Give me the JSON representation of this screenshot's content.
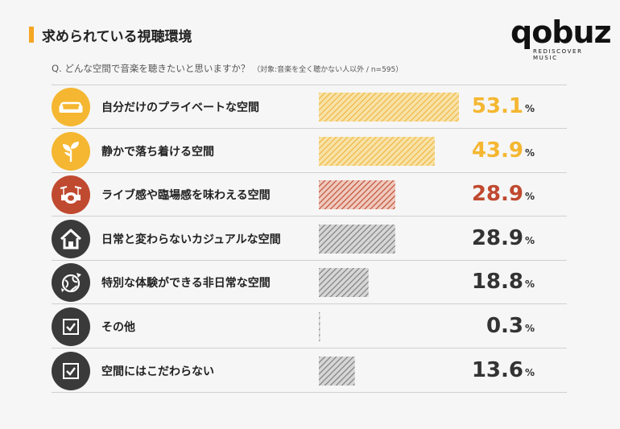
{
  "title": "求められている視聴環境",
  "logo": {
    "word": "qobuz",
    "tagline": "REDISCOVER MUSIC"
  },
  "question": "Q. どんな空間で音楽を聴きたいと思いますか？",
  "question_note": "（対象:音楽を全く聴かない人以外 / n=595）",
  "colors": {
    "accent": "#f5a623",
    "yellow": "#f5b731",
    "red": "#c04a30",
    "dark": "#3a3a3a",
    "gray_bar": "#888888"
  },
  "chart_data": {
    "type": "bar",
    "orientation": "horizontal",
    "categories": [
      "自分だけのプライベートな空間",
      "静かで落ち着ける空間",
      "ライブ感や臨場感を味わえる空間",
      "日常と変わらないカジュアルな空間",
      "特別な体験ができる非日常な空間",
      "その他",
      "空間にはこだわらない"
    ],
    "values": [
      53.1,
      43.9,
      28.9,
      28.9,
      18.8,
      0.3,
      13.6
    ],
    "value_labels": [
      "53.1",
      "43.9",
      "28.9",
      "28.9",
      "18.8",
      "0.3",
      "13.6"
    ],
    "unit": "%",
    "icons": [
      "sofa-icon",
      "sprout-icon",
      "drums-icon",
      "house-icon",
      "globe-plane-icon",
      "checkbox-icon",
      "checkbox-icon"
    ],
    "colors": [
      "#f5b731",
      "#f5b731",
      "#c04a30",
      "#555555",
      "#555555",
      "#555555",
      "#555555"
    ]
  }
}
